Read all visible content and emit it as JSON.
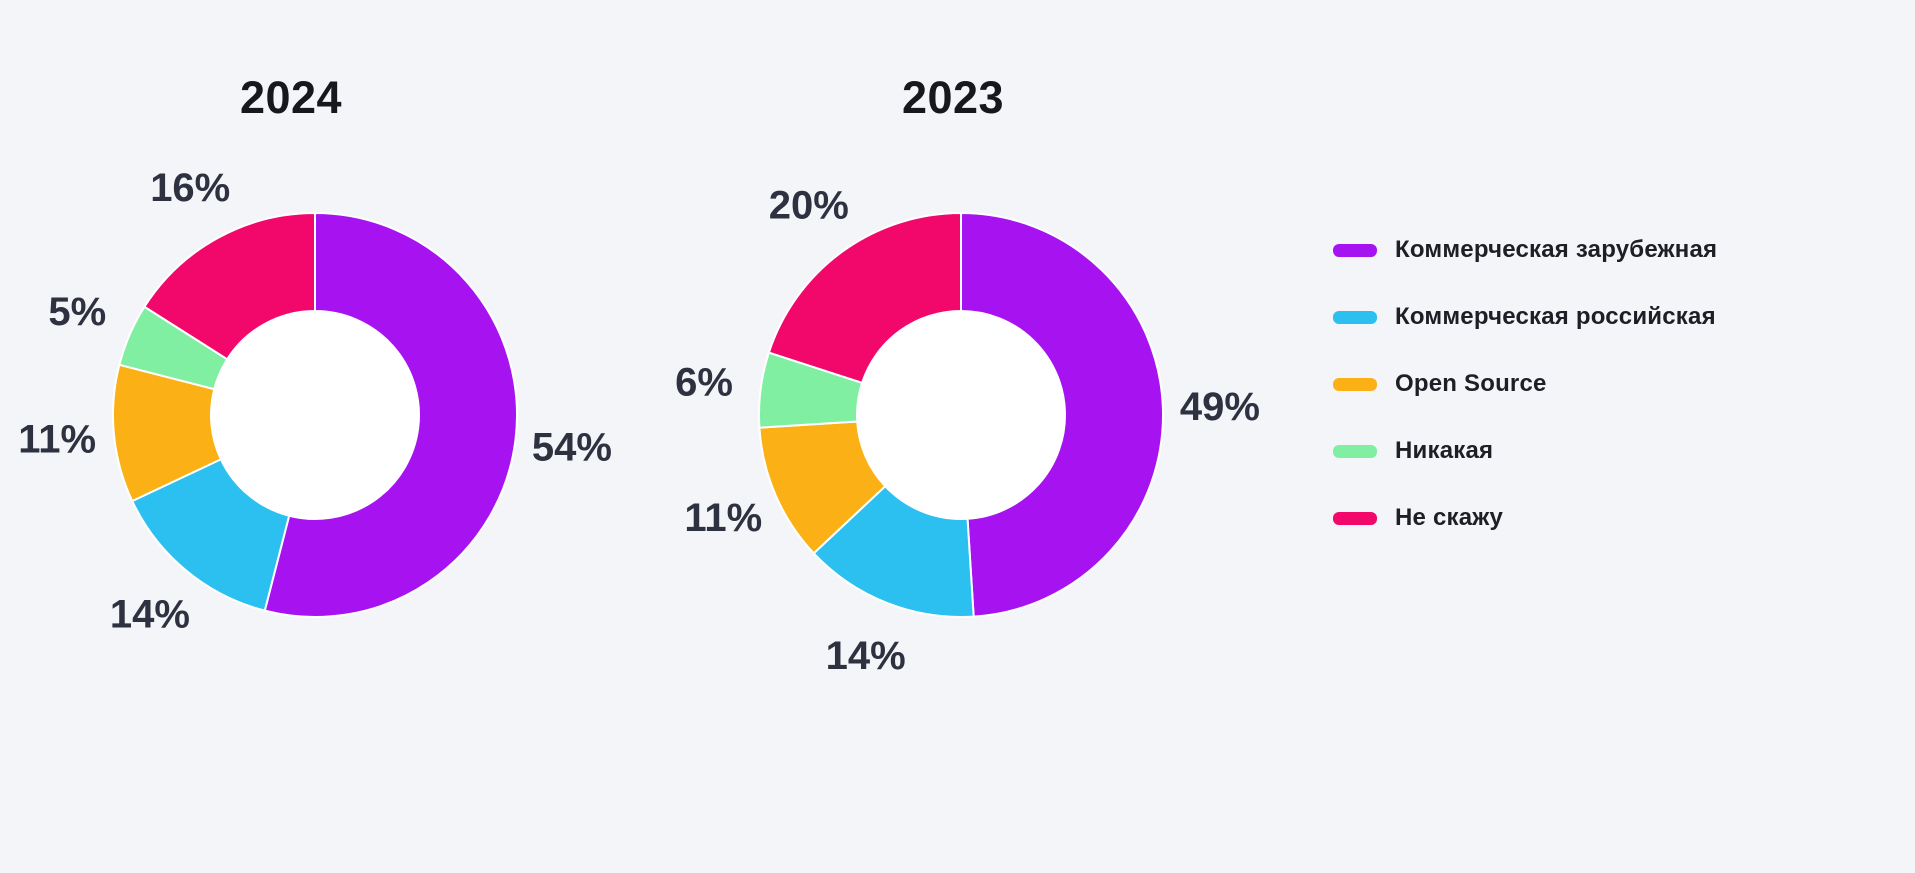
{
  "page": {
    "background_color": "#F4F5F8",
    "text_color_dark": "#17181D",
    "label_color": "#2E3140"
  },
  "legend": {
    "position": "right",
    "items": [
      {
        "label": "Коммерческая зарубежная",
        "color": "#A713F0"
      },
      {
        "label": "Коммерческая российская",
        "color": "#2BC0F0"
      },
      {
        "label": "Open Source",
        "color": "#FBB015"
      },
      {
        "label": "Никакая",
        "color": "#80EFA2"
      },
      {
        "label": "Не скажу",
        "color": "#F2086B"
      }
    ]
  },
  "chart_data": [
    {
      "type": "pie",
      "style": "donut",
      "title": "2024",
      "categories": [
        "Коммерческая зарубежная",
        "Коммерческая российская",
        "Open Source",
        "Никакая",
        "Не скажу"
      ],
      "values": [
        54,
        14,
        11,
        5,
        16
      ],
      "labels": [
        "54%",
        "14%",
        "11%",
        "5%",
        "16%"
      ],
      "unit": "%",
      "colors": [
        "#A713F0",
        "#2BC0F0",
        "#FBB015",
        "#80EFA2",
        "#F2086B"
      ],
      "start_angle_deg": 0,
      "direction": "clockwise",
      "hole_color": "#FFFFFF",
      "legend_position": "right"
    },
    {
      "type": "pie",
      "style": "donut",
      "title": "2023",
      "categories": [
        "Коммерческая зарубежная",
        "Коммерческая российская",
        "Open Source",
        "Никакая",
        "Не скажу"
      ],
      "values": [
        49,
        14,
        11,
        6,
        20
      ],
      "labels": [
        "49%",
        "14%",
        "11%",
        "6%",
        "20%"
      ],
      "unit": "%",
      "colors": [
        "#A713F0",
        "#2BC0F0",
        "#FBB015",
        "#80EFA2",
        "#F2086B"
      ],
      "start_angle_deg": 0,
      "direction": "clockwise",
      "hole_color": "#FFFFFF",
      "legend_position": "right"
    }
  ]
}
